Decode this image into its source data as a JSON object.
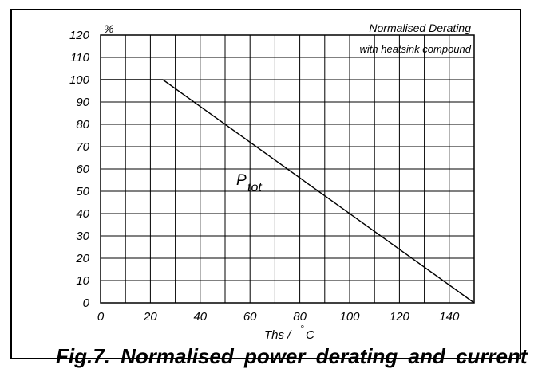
{
  "chart_data": {
    "type": "line",
    "series": [
      {
        "name": "Ptot",
        "x": [
          0,
          25,
          150
        ],
        "y": [
          100,
          100,
          0
        ]
      }
    ],
    "xlim": [
      0,
      150
    ],
    "ylim": [
      0,
      120
    ],
    "x_ticks": [
      0,
      20,
      40,
      60,
      80,
      100,
      120,
      140
    ],
    "y_ticks": [
      0,
      10,
      20,
      30,
      40,
      50,
      60,
      70,
      80,
      90,
      100,
      110,
      120
    ],
    "grid": true,
    "ylabel": "%",
    "xlabel_main": "Ths / ",
    "xlabel_degree": "°",
    "xlabel_unit": "C",
    "annotation_title": "Normalised Derating",
    "annotation_subtitle": "with heatsink compound",
    "curve_label_main": "P",
    "curve_label_sub": "tot"
  },
  "caption": "Fig.7.  Normalised power derating and current"
}
